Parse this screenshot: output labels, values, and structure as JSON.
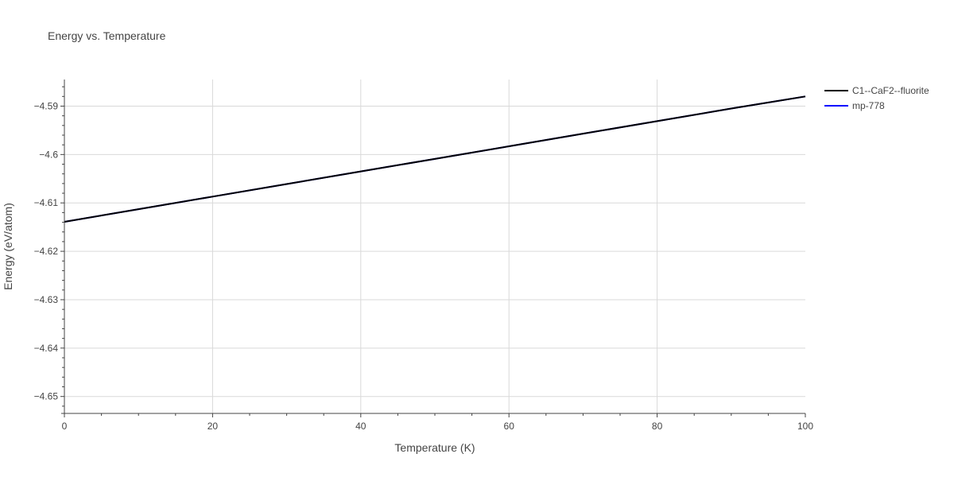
{
  "chart_data": {
    "type": "line",
    "title": "Energy vs. Temperature",
    "xlabel": "Temperature (K)",
    "ylabel": "Energy (eV/atom)",
    "xlim": [
      0,
      100
    ],
    "ylim": [
      -4.6535,
      -4.5845
    ],
    "x_ticks": [
      0,
      20,
      40,
      60,
      80,
      100
    ],
    "x_tick_labels": [
      "0",
      "20",
      "40",
      "60",
      "80",
      "100"
    ],
    "y_ticks": [
      -4.65,
      -4.64,
      -4.63,
      -4.62,
      -4.61,
      -4.6,
      -4.59
    ],
    "y_tick_labels": [
      "−4.65",
      "−4.64",
      "−4.63",
      "−4.62",
      "−4.61",
      "−4.6",
      "−4.59"
    ],
    "grid": true,
    "legend_position": "top-right outside",
    "series": [
      {
        "name": "C1--CaF2--fluorite",
        "color": "#000000",
        "x": [
          0,
          10,
          20,
          30,
          40,
          50,
          60,
          70,
          80,
          90,
          100
        ],
        "y": [
          -4.6139,
          -4.6113,
          -4.6087,
          -4.6061,
          -4.6035,
          -4.6009,
          -4.5983,
          -4.5957,
          -4.5931,
          -4.5905,
          -4.588
        ]
      },
      {
        "name": "mp-778",
        "color": "#0000ff",
        "x": [
          0,
          10,
          20,
          30,
          40,
          50,
          60,
          70,
          80,
          90,
          100
        ],
        "y": [
          -4.6139,
          -4.6113,
          -4.6087,
          -4.6061,
          -4.6035,
          -4.6009,
          -4.5983,
          -4.5957,
          -4.5931,
          -4.5905,
          -4.588
        ]
      }
    ]
  },
  "colors": {
    "text": "#444444",
    "grid": "#d9d9d9",
    "axis": "#444444"
  }
}
